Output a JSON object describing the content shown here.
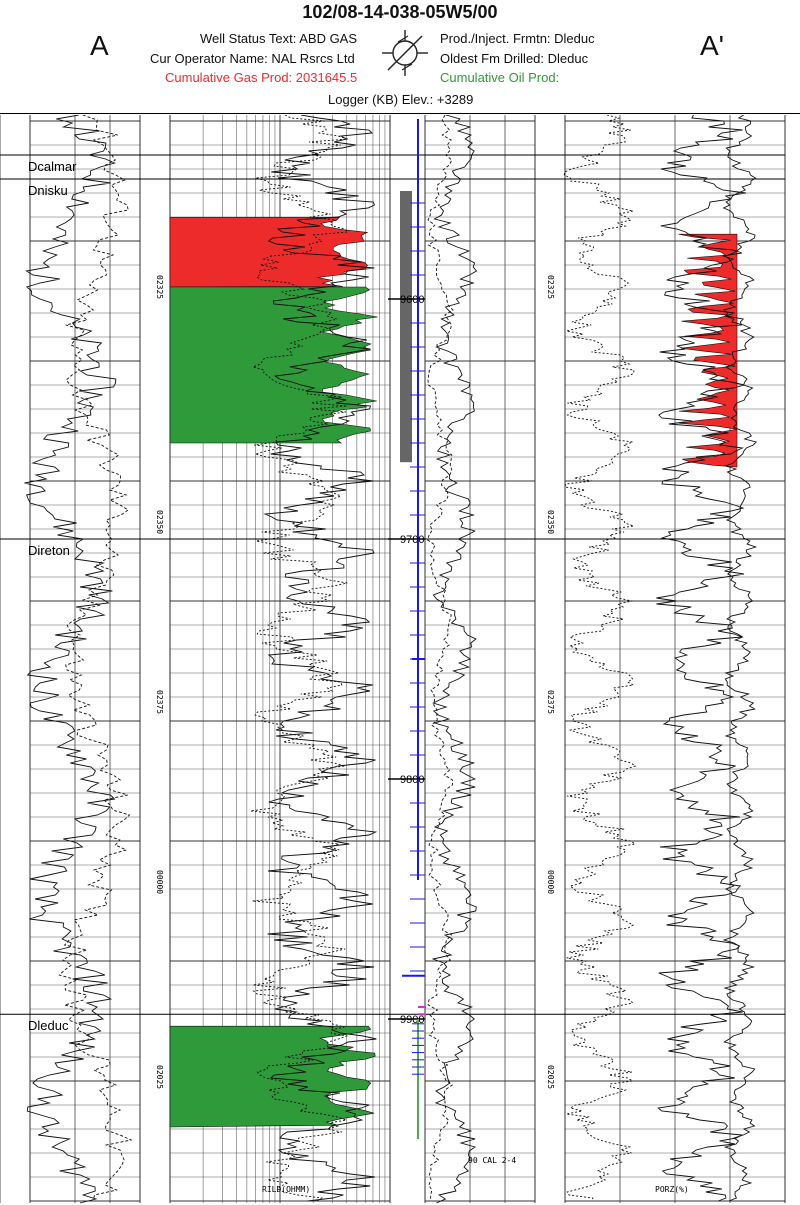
{
  "well": {
    "uwi": "102/08-14-038-05W5/00",
    "side_left": "A",
    "side_right": "A'",
    "status_text": "Well Status Text: ABD GAS",
    "operator": "Cur Operator Name: NAL Rsrcs Ltd",
    "gas_prod": "Cumulative Gas Prod: 2031645.5",
    "prod_formation": "Prod./Inject. Frmtn: Dleduc",
    "oldest_fm": "Oldest Fm Drilled: Dleduc",
    "oil_prod": "Cumulative Oil Prod:",
    "logger_elev": "Logger (KB) Elev.: +3289"
  },
  "colors": {
    "gas": "#ee2b2b",
    "oil": "#2e9a3a",
    "depth_track": "#1a1adb",
    "perforation": "#4caf50",
    "core": "#cc33cc",
    "casing": "#666666"
  },
  "formation_tops": [
    {
      "name": "Dcalmar",
      "depth": 9540
    },
    {
      "name": "Dnisku",
      "depth": 9550
    },
    {
      "name": "Direton",
      "depth": 9700
    },
    {
      "name": "Dleduc",
      "depth": 9898
    }
  ],
  "depth_labels": [
    "9600",
    "9700",
    "9800",
    "9900"
  ],
  "log_labels": {
    "left_scales": [
      "02325",
      "02350",
      "02375",
      "00000",
      "02025"
    ],
    "right_scales": [
      "02325",
      "02350",
      "02375",
      "00000",
      "02025"
    ],
    "resistivity_curve": "RILD(OHMM)",
    "porosity_curve": "PORZ(%)",
    "caliper_note": "90 CAL 2-4"
  },
  "shading": [
    {
      "kind": "gas",
      "from": 9566,
      "to": 9595
    },
    {
      "kind": "oil",
      "from": 9595,
      "to": 9660
    },
    {
      "kind": "oil",
      "from": 9903,
      "to": 9945
    }
  ]
}
